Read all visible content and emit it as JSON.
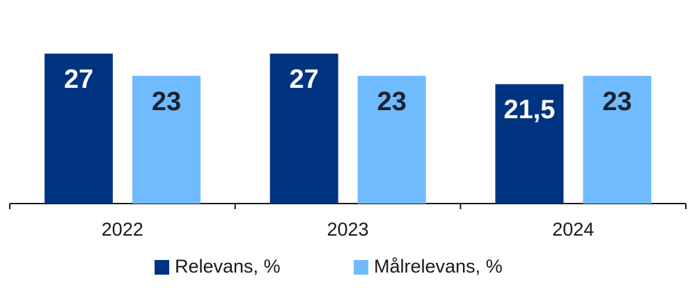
{
  "chart_data": {
    "type": "bar",
    "categories": [
      "2022",
      "2023",
      "2024"
    ],
    "series": [
      {
        "name": "Relevans, %",
        "color": "#003380",
        "label_color": "#ffffff",
        "values": [
          27,
          27,
          21.5
        ],
        "value_labels": [
          "27",
          "27",
          "21,5"
        ]
      },
      {
        "name": "Målrelevans, %",
        "color": "#70bbfd",
        "label_color": "#1c2331",
        "values": [
          23,
          23,
          23
        ],
        "value_labels": [
          "23",
          "23",
          "23"
        ]
      }
    ],
    "ylim": [
      0,
      30
    ]
  }
}
